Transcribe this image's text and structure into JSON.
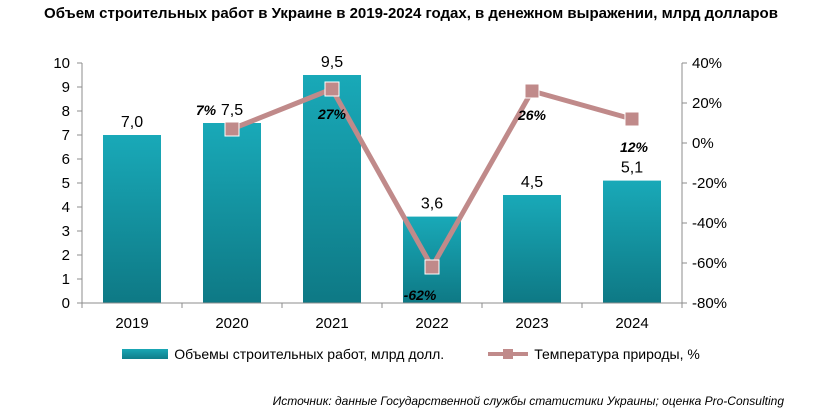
{
  "title": "Объем строительных работ в Украине в 2019-2024 годах, в денежном выражении, млрд долларов",
  "source": "Источник: данные Государственной службы статистики Украины; оценка Pro-Consulting",
  "colors": {
    "bar": "#149aa8",
    "line": "#c08a8a",
    "marker": "#c08a8a"
  },
  "chart_data": {
    "type": "bar",
    "categories": [
      "2019",
      "2020",
      "2021",
      "2022",
      "2023",
      "2024"
    ],
    "series": [
      {
        "name": "Объемы строительных работ, млрд долл.",
        "type": "bar",
        "axis": "left",
        "values": [
          7.0,
          7.5,
          9.5,
          3.6,
          4.5,
          5.1
        ],
        "labels": [
          "7,0",
          "7,5",
          "9,5",
          "3,6",
          "4,5",
          "5,1"
        ]
      },
      {
        "name": "Температура природы, %",
        "type": "line",
        "axis": "right",
        "values": [
          null,
          7,
          27,
          -62,
          26,
          12
        ],
        "labels": [
          null,
          "7%",
          "27%",
          "-62%",
          "26%",
          "12%"
        ]
      }
    ],
    "y_left": {
      "min": 0,
      "max": 10,
      "ticks": [
        "0",
        "1",
        "2",
        "3",
        "4",
        "5",
        "6",
        "7",
        "8",
        "9",
        "10"
      ]
    },
    "y_right": {
      "min": -80,
      "max": 40,
      "ticks": [
        "-80%",
        "-60%",
        "-40%",
        "-20%",
        "0%",
        "20%",
        "40%"
      ]
    },
    "legend_position": "bottom",
    "grid": false
  }
}
